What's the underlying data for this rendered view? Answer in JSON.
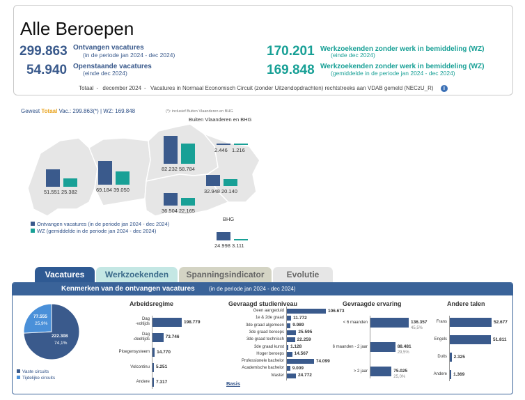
{
  "header": {
    "title": "Alle Beroepen",
    "kpis": [
      {
        "value": "299.863",
        "label": "Ontvangen vacatures",
        "sub": "(in de periode jan 2024 - dec 2024)",
        "color": "#3a5a8c"
      },
      {
        "value": "54.940",
        "label": "Openstaande vacatures",
        "sub": "(einde dec 2024)",
        "color": "#3a5a8c"
      },
      {
        "value": "170.201",
        "label": "Werkzoekenden zonder werk in bemiddeling (WZ)",
        "sub": "(einde dec 2024)",
        "color": "#18a096"
      },
      {
        "value": "169.848",
        "label": "Werkzoekenden zonder werk in bemiddeling (WZ)",
        "sub": "(gemiddelde in de periode jan 2024 - dec 2024)",
        "color": "#18a096"
      }
    ],
    "footer": {
      "a": "Totaal",
      "b": "december 2024",
      "c": "Vacatures in Normaal Economisch Circuit (zonder Uitzendopdrachten) rechtstreeks aan VDAB gemeld (NECzU_R)"
    }
  },
  "map": {
    "gewest_prefix": "Gewest",
    "gewest_tot": "Totaal",
    "gewest_rest": "Vac.: 299.863(*) | WZ: 169.848",
    "note": "(*): inclusief Buiten Vlaanderen en BHG",
    "outside_label": "Buiten Vlaanderen en BHG",
    "bhg_label": "BHG",
    "legend": [
      {
        "label": "Ontvangen vacatures (in de periode jan 2024 - dec 2024)",
        "color": "#3a5a8c"
      },
      {
        "label": "WZ (gemiddelde in de periode jan 2024 - dec 2024)",
        "color": "#18a096"
      }
    ],
    "regions": [
      {
        "name": "West-Vlaanderen",
        "vac": "51.551",
        "wz": "25.382",
        "vac_n": 51551,
        "wz_n": 25382
      },
      {
        "name": "Oost-Vlaanderen",
        "vac": "69.184",
        "wz": "39.050",
        "vac_n": 69184,
        "wz_n": 39050
      },
      {
        "name": "Antwerpen",
        "vac": "82.232",
        "wz": "58.784",
        "vac_n": 82232,
        "wz_n": 58784
      },
      {
        "name": "Limburg",
        "vac": "32.948",
        "wz": "20.140",
        "vac_n": 32948,
        "wz_n": 20140
      },
      {
        "name": "Vlaams-Brabant",
        "vac": "36.504",
        "wz": "22.165",
        "vac_n": 36504,
        "wz_n": 22165
      },
      {
        "name": "Buiten Vlaanderen en BHG",
        "vac": "2.446",
        "wz": "1.216",
        "vac_n": 2446,
        "wz_n": 1216
      },
      {
        "name": "BHG",
        "vac": "24.998",
        "wz": "3.111",
        "vac_n": 24998,
        "wz_n": 3111
      }
    ]
  },
  "tabs": [
    {
      "label": "Vacatures",
      "active": true
    },
    {
      "label": "Werkzoekenden",
      "active": false
    },
    {
      "label": "Spanningsindicator",
      "active": false
    },
    {
      "label": "Evolutie",
      "active": false
    }
  ],
  "panel": {
    "title": "Kenmerken van de ontvangen vacatures",
    "subtitle": "(in de periode jan 2024 - dec 2024)"
  },
  "chart_data": [
    {
      "type": "pie",
      "title": "Circuits",
      "categories": [
        "Vaste circuits",
        "Tijdelijke circuits"
      ],
      "values": [
        222308,
        77555
      ],
      "value_labels": [
        "222.308",
        "77.555"
      ],
      "percent_labels": [
        "74,1%",
        "25,9%"
      ],
      "colors": [
        "#3a5a8c",
        "#4a90d9"
      ]
    },
    {
      "type": "bar",
      "title": "Arbeidsregime",
      "categories": [
        "Dag -voltijds",
        "Dag -deeltijds",
        "Ploegensysteem",
        "Volcontinu",
        "Andere"
      ],
      "values": [
        198779,
        73746,
        14770,
        5251,
        7317
      ],
      "value_labels": [
        "198.779",
        "73.746",
        "14.770",
        "5.251",
        "7.317"
      ]
    },
    {
      "type": "bar",
      "title": "Gevraagd studieniveau",
      "categories": [
        "Geen aangeduid",
        "1e & 2de graad",
        "3de graad algemeen",
        "3de graad beroeps",
        "3de graad technisch",
        "3de graad kunst",
        "Hoger beroeps",
        "Professionele bachelor",
        "Academische bachelor",
        "Master"
      ],
      "values": [
        106673,
        11772,
        9989,
        25595,
        22259,
        1128,
        14567,
        74099,
        9009,
        24772
      ],
      "value_labels": [
        "106.673",
        "11.772",
        "9.989",
        "25.595",
        "22.259",
        "1.128",
        "14.567",
        "74.099",
        "9.009",
        "24.772"
      ],
      "link": "Basis"
    },
    {
      "type": "bar",
      "title": "Gevraagde ervaring",
      "categories": [
        "< 6 maanden",
        "6 maanden - 2 jaar",
        "> 2 jaar"
      ],
      "values": [
        136357,
        88481,
        75025
      ],
      "value_labels": [
        "136.357",
        "88.481",
        "75.025"
      ],
      "percent_labels": [
        "45,5%",
        "29,5%",
        "25,0%"
      ]
    },
    {
      "type": "bar",
      "title": "Andere talen",
      "categories": [
        "Frans",
        "Engels",
        "Duits",
        "Andere"
      ],
      "values": [
        52677,
        51811,
        2325,
        1369
      ],
      "value_labels": [
        "52.677",
        "51.811",
        "2.325",
        "1.369"
      ]
    }
  ]
}
